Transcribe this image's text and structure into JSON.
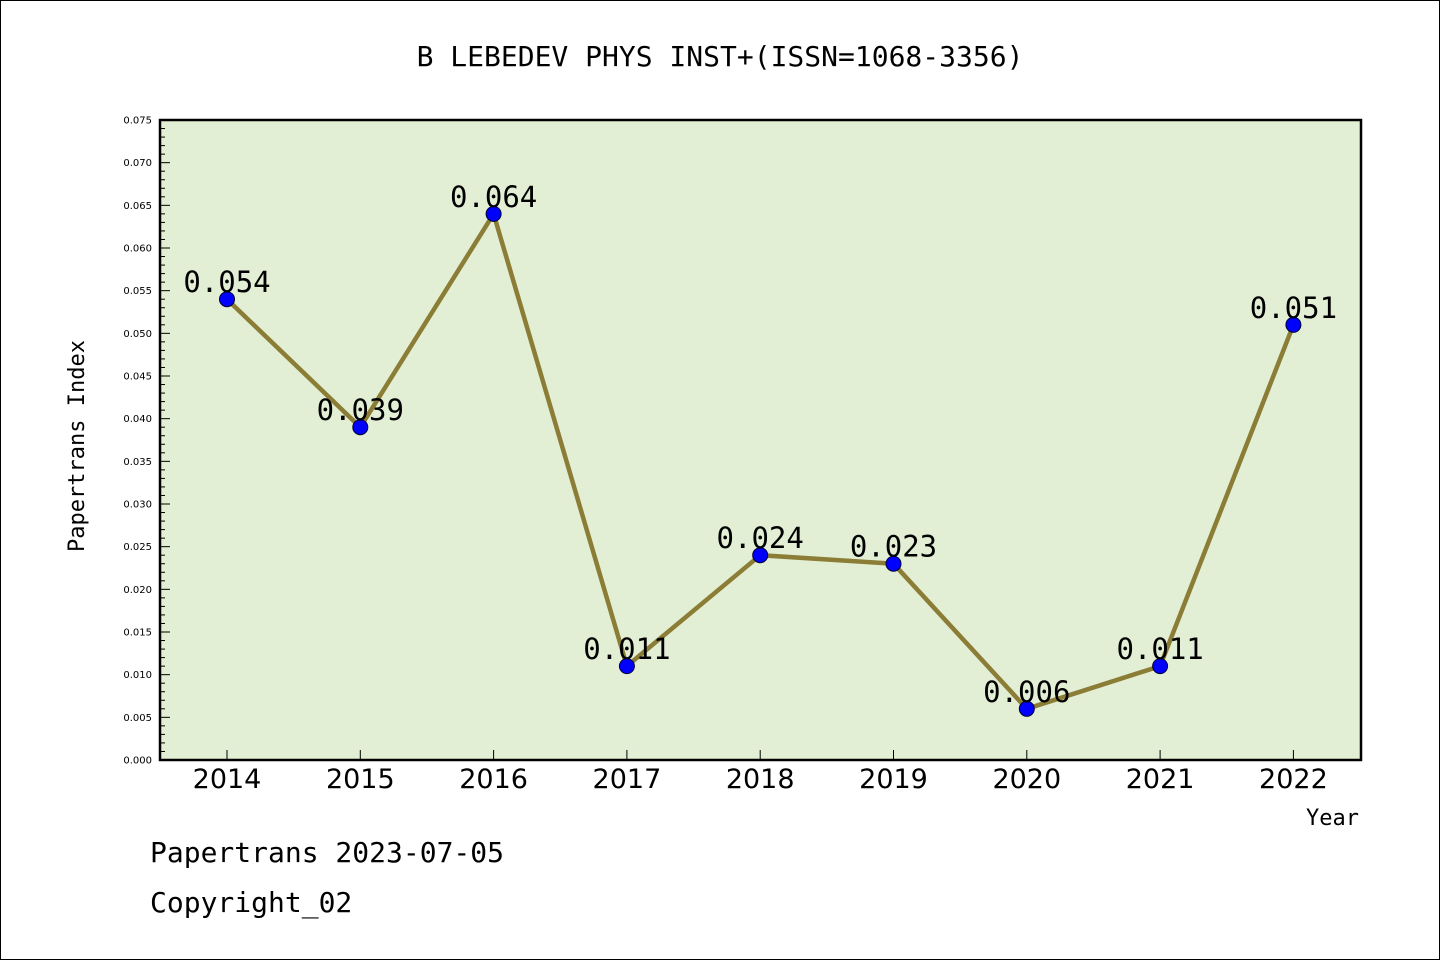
{
  "chart_data": {
    "type": "line",
    "title": "B LEBEDEV PHYS INST+(ISSN=1068-3356)",
    "xlabel": "Year",
    "ylabel": "Papertrans Index",
    "categories": [
      "2014",
      "2015",
      "2016",
      "2017",
      "2018",
      "2019",
      "2020",
      "2021",
      "2022"
    ],
    "values": [
      0.054,
      0.039,
      0.064,
      0.011,
      0.024,
      0.023,
      0.006,
      0.011,
      0.051
    ],
    "data_labels": [
      "0.054",
      "0.039",
      "0.064",
      "0.011",
      "0.024",
      "0.023",
      "0.006",
      "0.011",
      "0.051"
    ],
    "ylim": [
      0,
      0.075
    ],
    "ytick_step": 0.005,
    "yticks": [
      "0.000",
      "0.005",
      "0.010",
      "0.015",
      "0.020",
      "0.025",
      "0.030",
      "0.035",
      "0.040",
      "0.045",
      "0.050",
      "0.055",
      "0.060",
      "0.065",
      "0.070",
      "0.075"
    ],
    "grid": false,
    "colors": {
      "plot_background": "#e2efd5",
      "line": "#8b7d35",
      "marker": "#0000ff"
    }
  },
  "footer": {
    "line1": "Papertrans 2023-07-05",
    "line2": "Copyright_02"
  }
}
